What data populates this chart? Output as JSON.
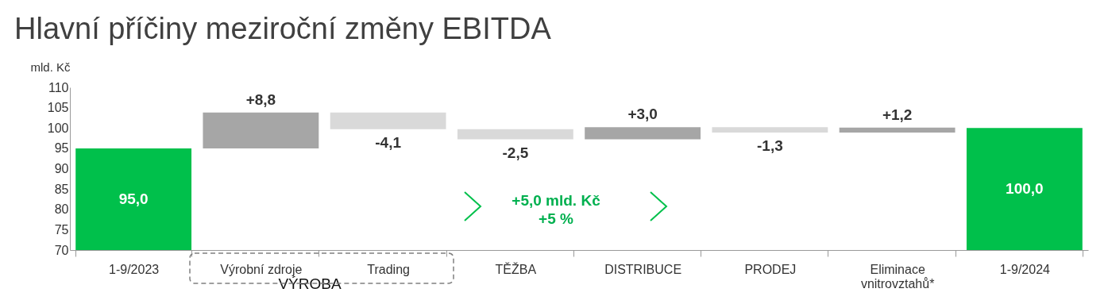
{
  "chart_data": {
    "type": "bar",
    "title": "Hlavní příčiny meziroční změny EBITDA",
    "ylabel": "mld. Kč",
    "categories": [
      "1-9/2023",
      "Výrobní zdroje",
      "Trading",
      "TĚŽBA",
      "DISTRIBUCE",
      "PRODEJ",
      "Eliminace vnitrovztahů*",
      "1-9/2024"
    ],
    "values": [
      95.0,
      8.8,
      -4.1,
      -2.5,
      3.0,
      -1.3,
      1.2,
      100.0
    ],
    "base": [
      null,
      95.0,
      103.8,
      99.7,
      97.2,
      100.2,
      98.9,
      null
    ],
    "colors": [
      "#00c04b",
      "#a6a6a6",
      "#d9d9d9",
      "#d9d9d9",
      "#a6a6a6",
      "#d9d9d9",
      "#a6a6a6",
      "#00c04b"
    ],
    "value_labels": [
      "95,0",
      "+8,8",
      "-4,1",
      "-2,5",
      "+3,0",
      "-1,3",
      "+1,2",
      "100,0"
    ],
    "ylim": [
      70,
      110
    ],
    "yticks": [
      70,
      75,
      80,
      85,
      90,
      95,
      100,
      105,
      110
    ],
    "annotations": [
      "VÝROBA",
      "+5,0 mld. Kč",
      "+5 %"
    ],
    "grid": false,
    "legend": false
  }
}
